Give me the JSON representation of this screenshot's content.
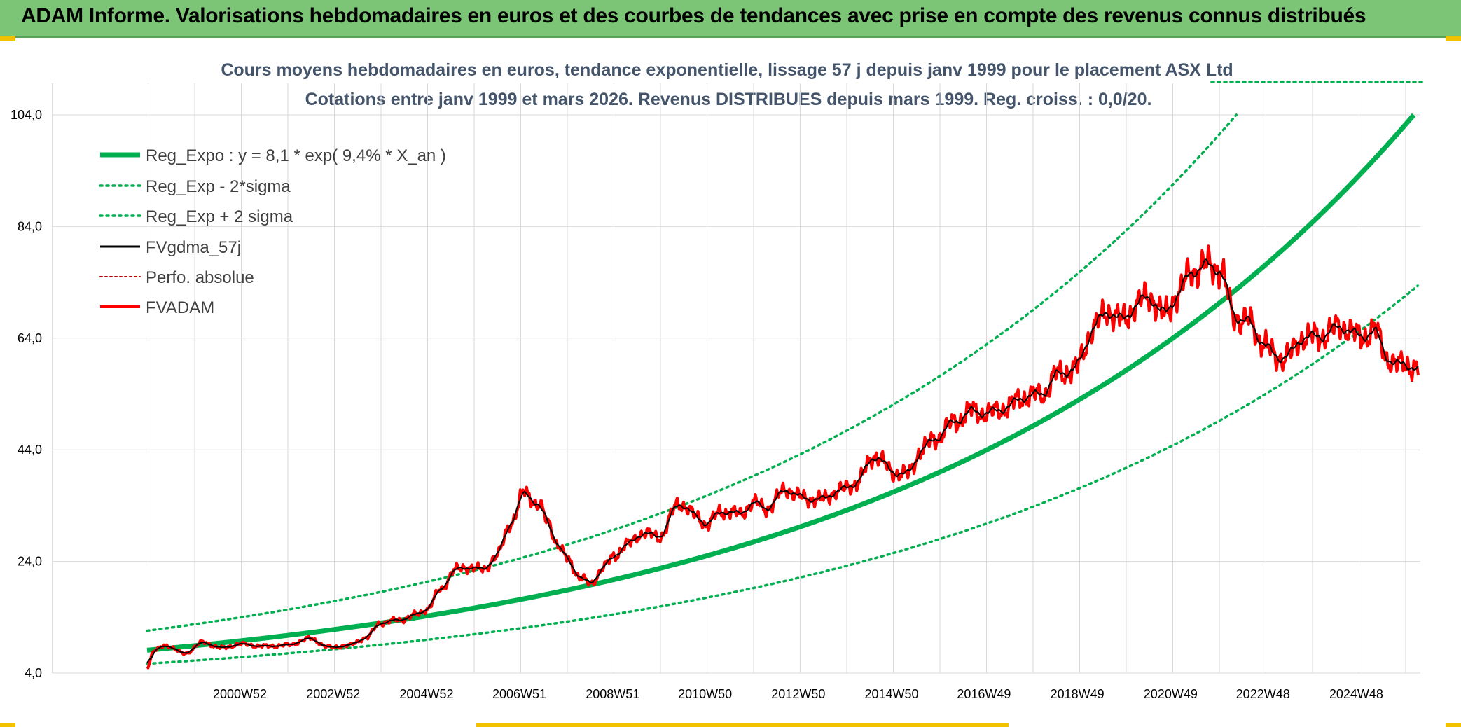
{
  "header": {
    "title": "ADAM Informe. Valorisations hebdomadaires en euros et des courbes de tendances avec prise en compte des revenus connus distribués"
  },
  "colors": {
    "header_bg": "#7cc576",
    "trend": "#00b050",
    "band": "#00b050",
    "avg": "#000000",
    "price": "#ff0000",
    "accent": "#f2c200"
  },
  "chart_data": {
    "type": "line",
    "title_line1": "Cours moyens hebdomadaires en euros, tendance exponentielle, lissage 57 j depuis janv 1999 pour le placement ASX Ltd",
    "title_line2": "Cotations entre janv 1999 et mars 2026. Revenus DISTRIBUES depuis mars 1999. Reg. croiss. : 0,0/20.",
    "ylim": [
      4,
      104
    ],
    "xlim": [
      1999.0,
      2026.25
    ],
    "y_ticks": [
      "4,0",
      "24,0",
      "44,0",
      "64,0",
      "84,0",
      "104,0"
    ],
    "y_tick_values": [
      4,
      24,
      44,
      64,
      84,
      104
    ],
    "x_tick_labels": [
      "2000W52",
      "2002W52",
      "2004W52",
      "2006W51",
      "2008W51",
      "2010W50",
      "2012W50",
      "2014W50",
      "2016W49",
      "2018W49",
      "2020W49",
      "2022W48",
      "2024W48"
    ],
    "x_tick_years": [
      2000.99,
      2002.99,
      2004.99,
      2006.98,
      2008.98,
      2010.96,
      2012.96,
      2014.96,
      2016.94,
      2018.94,
      2020.94,
      2022.92,
      2024.92
    ],
    "grid": true,
    "legend_position": "top-left",
    "regression": {
      "a": 8.1,
      "rate": 0.094,
      "x0": 1999.0
    },
    "series": [
      {
        "name": "Reg_Expo : y = 8,1 * exp( 9,4% *  X_an )",
        "style": "solid-thick",
        "color": "#00b050"
      },
      {
        "name": "Reg_Exp - 2*sigma",
        "style": "dotted",
        "color": "#00b050",
        "factor": 0.7
      },
      {
        "name": "Reg_Exp + 2 sigma",
        "style": "dotted",
        "color": "#00b050",
        "factor": 1.43
      },
      {
        "name": "FVgdma_57j",
        "style": "solid-thin",
        "color": "#000000"
      },
      {
        "name": "Perfo. absolue",
        "style": "dotted-red",
        "color": "#c00000"
      },
      {
        "name": "FVADAM",
        "style": "solid-thick",
        "color": "#ff0000"
      }
    ],
    "price_anchors": {
      "x": [
        1999.0,
        1999.15,
        1999.4,
        1999.8,
        2000.2,
        2000.6,
        2001.0,
        2001.5,
        2002.0,
        2002.5,
        2002.9,
        2003.3,
        2003.7,
        2004.0,
        2004.4,
        2004.8,
        2005.0,
        2005.3,
        2005.6,
        2005.9,
        2006.2,
        2006.5,
        2006.8,
        2007.1,
        2007.4,
        2007.6,
        2007.8,
        2008.0,
        2008.3,
        2008.5,
        2008.8,
        2009.0,
        2009.3,
        2009.6,
        2010.0,
        2010.4,
        2010.8,
        2011.0,
        2011.3,
        2011.7,
        2012.0,
        2012.3,
        2012.7,
        2013.0,
        2013.4,
        2013.8,
        2014.2,
        2014.6,
        2015.0,
        2015.3,
        2015.6,
        2015.9,
        2016.3,
        2016.7,
        2017.0,
        2017.4,
        2017.8,
        2018.2,
        2018.5,
        2018.9,
        2019.3,
        2019.6,
        2019.9,
        2020.2,
        2020.5,
        2020.8,
        2021.1,
        2021.4,
        2021.7,
        2022.0,
        2022.3,
        2022.6,
        2022.9,
        2023.2,
        2023.5,
        2023.8,
        2024.1,
        2024.4,
        2024.7,
        2025.0,
        2025.3,
        2025.6,
        2025.8,
        2026.0,
        2026.2
      ],
      "y": [
        5.0,
        8.0,
        9.0,
        7.5,
        9.5,
        8.5,
        9.2,
        8.8,
        9.0,
        10.2,
        8.6,
        8.9,
        10.3,
        13.0,
        13.5,
        14.5,
        15.5,
        19.0,
        22.5,
        23.0,
        22.5,
        25.0,
        31.0,
        36.5,
        34.0,
        31.0,
        27.0,
        24.5,
        21.0,
        20.0,
        23.0,
        25.0,
        27.0,
        29.0,
        28.5,
        34.5,
        32.0,
        30.5,
        33.0,
        32.5,
        34.5,
        33.5,
        37.0,
        35.5,
        35.0,
        36.5,
        38.0,
        43.0,
        40.0,
        39.5,
        44.0,
        46.0,
        49.0,
        51.0,
        50.5,
        51.5,
        53.5,
        54.0,
        57.5,
        58.5,
        66.0,
        69.0,
        67.0,
        70.0,
        71.5,
        68.0,
        72.0,
        76.0,
        77.0,
        76.5,
        68.0,
        67.0,
        63.5,
        60.5,
        61.0,
        64.5,
        64.0,
        65.5,
        66.0,
        64.0,
        65.5,
        60.5,
        59.0,
        59.5,
        58.5
      ]
    }
  }
}
